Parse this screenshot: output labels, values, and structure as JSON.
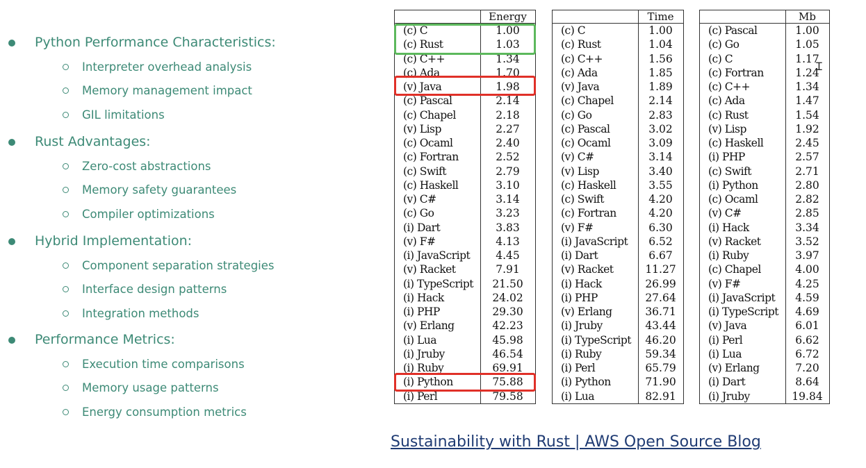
{
  "bullets": [
    {
      "title": "Python Performance Characteristics:",
      "subs": [
        "Interpreter overhead analysis",
        "Memory management impact",
        "GIL limitations"
      ]
    },
    {
      "title": "Rust Advantages:",
      "subs": [
        "Zero-cost abstractions",
        "Memory safety guarantees",
        "Compiler optimizations"
      ]
    },
    {
      "title": "Hybrid Implementation:",
      "subs": [
        "Component separation strategies",
        "Interface design patterns",
        "Integration methods"
      ]
    },
    {
      "title": "Performance Metrics:",
      "subs": [
        "Execution time comparisons",
        "Memory usage patterns",
        "Energy consumption metrics"
      ]
    }
  ],
  "tables": [
    {
      "header": "Energy",
      "rows": [
        [
          "(c) C",
          "1.00"
        ],
        [
          "(c) Rust",
          "1.03"
        ],
        [
          "(c) C++",
          "1.34"
        ],
        [
          "(c) Ada",
          "1.70"
        ],
        [
          "(v) Java",
          "1.98"
        ],
        [
          "(c) Pascal",
          "2.14"
        ],
        [
          "(c) Chapel",
          "2.18"
        ],
        [
          "(v) Lisp",
          "2.27"
        ],
        [
          "(c) Ocaml",
          "2.40"
        ],
        [
          "(c) Fortran",
          "2.52"
        ],
        [
          "(c) Swift",
          "2.79"
        ],
        [
          "(c) Haskell",
          "3.10"
        ],
        [
          "(v) C#",
          "3.14"
        ],
        [
          "(c) Go",
          "3.23"
        ],
        [
          "(i) Dart",
          "3.83"
        ],
        [
          "(v) F#",
          "4.13"
        ],
        [
          "(i) JavaScript",
          "4.45"
        ],
        [
          "(v) Racket",
          "7.91"
        ],
        [
          "(i) TypeScript",
          "21.50"
        ],
        [
          "(i) Hack",
          "24.02"
        ],
        [
          "(i) PHP",
          "29.30"
        ],
        [
          "(v) Erlang",
          "42.23"
        ],
        [
          "(i) Lua",
          "45.98"
        ],
        [
          "(i) Jruby",
          "46.54"
        ],
        [
          "(i) Ruby",
          "69.91"
        ],
        [
          "(i) Python",
          "75.88"
        ],
        [
          "(i) Perl",
          "79.58"
        ]
      ]
    },
    {
      "header": "Time",
      "rows": [
        [
          "(c) C",
          "1.00"
        ],
        [
          "(c) Rust",
          "1.04"
        ],
        [
          "(c) C++",
          "1.56"
        ],
        [
          "(c) Ada",
          "1.85"
        ],
        [
          "(v) Java",
          "1.89"
        ],
        [
          "(c) Chapel",
          "2.14"
        ],
        [
          "(c) Go",
          "2.83"
        ],
        [
          "(c) Pascal",
          "3.02"
        ],
        [
          "(c) Ocaml",
          "3.09"
        ],
        [
          "(v) C#",
          "3.14"
        ],
        [
          "(v) Lisp",
          "3.40"
        ],
        [
          "(c) Haskell",
          "3.55"
        ],
        [
          "(c) Swift",
          "4.20"
        ],
        [
          "(c) Fortran",
          "4.20"
        ],
        [
          "(v) F#",
          "6.30"
        ],
        [
          "(i) JavaScript",
          "6.52"
        ],
        [
          "(i) Dart",
          "6.67"
        ],
        [
          "(v) Racket",
          "11.27"
        ],
        [
          "(i) Hack",
          "26.99"
        ],
        [
          "(i) PHP",
          "27.64"
        ],
        [
          "(v) Erlang",
          "36.71"
        ],
        [
          "(i) Jruby",
          "43.44"
        ],
        [
          "(i) TypeScript",
          "46.20"
        ],
        [
          "(i) Ruby",
          "59.34"
        ],
        [
          "(i) Perl",
          "65.79"
        ],
        [
          "(i) Python",
          "71.90"
        ],
        [
          "(i) Lua",
          "82.91"
        ]
      ]
    },
    {
      "header": "Mb",
      "rows": [
        [
          "(c) Pascal",
          "1.00"
        ],
        [
          "(c) Go",
          "1.05"
        ],
        [
          "(c) C",
          "1.17"
        ],
        [
          "(c) Fortran",
          "1.24"
        ],
        [
          "(c) C++",
          "1.34"
        ],
        [
          "(c) Ada",
          "1.47"
        ],
        [
          "(c) Rust",
          "1.54"
        ],
        [
          "(v) Lisp",
          "1.92"
        ],
        [
          "(c) Haskell",
          "2.45"
        ],
        [
          "(i) PHP",
          "2.57"
        ],
        [
          "(c) Swift",
          "2.71"
        ],
        [
          "(i) Python",
          "2.80"
        ],
        [
          "(c) Ocaml",
          "2.82"
        ],
        [
          "(v) C#",
          "2.85"
        ],
        [
          "(i) Hack",
          "3.34"
        ],
        [
          "(v) Racket",
          "3.52"
        ],
        [
          "(i) Ruby",
          "3.97"
        ],
        [
          "(c) Chapel",
          "4.00"
        ],
        [
          "(v) F#",
          "4.25"
        ],
        [
          "(i) JavaScript",
          "4.59"
        ],
        [
          "(i) TypeScript",
          "4.69"
        ],
        [
          "(v) Java",
          "6.01"
        ],
        [
          "(i) Perl",
          "6.62"
        ],
        [
          "(i) Lua",
          "6.72"
        ],
        [
          "(v) Erlang",
          "7.20"
        ],
        [
          "(i) Dart",
          "8.64"
        ],
        [
          "(i) Jruby",
          "19.84"
        ]
      ]
    }
  ],
  "link_text": "Sustainability with Rust | AWS Open Source Blog",
  "colors": {
    "bullet_text": "#3d8a76",
    "highlight_green": "#5cb85c",
    "highlight_red": "#e03028",
    "link": "#1f3b73"
  },
  "icons": {
    "cursor": "text-cursor-icon"
  }
}
